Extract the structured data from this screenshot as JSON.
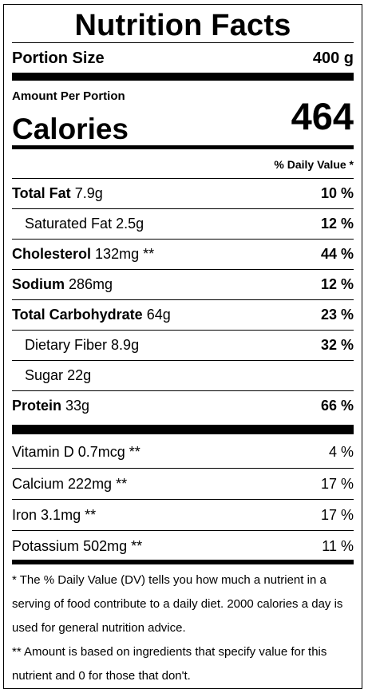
{
  "title": "Nutrition Facts",
  "portion": {
    "label": "Portion Size",
    "value": "400 g"
  },
  "amount_per_portion": "Amount Per Portion",
  "calories": {
    "label": "Calories",
    "value": "464"
  },
  "daily_value_header": "% Daily Value *",
  "nutrients": [
    {
      "name": "Total Fat",
      "amount": "7.9g",
      "percent": "10 %",
      "bold": true,
      "indent": false
    },
    {
      "name": "Saturated Fat",
      "amount": "2.5g",
      "percent": "12 %",
      "bold": false,
      "indent": true
    },
    {
      "name": "Cholesterol",
      "amount": "132mg **",
      "percent": "44 %",
      "bold": true,
      "indent": false
    },
    {
      "name": "Sodium",
      "amount": "286mg",
      "percent": "12 %",
      "bold": true,
      "indent": false
    },
    {
      "name": "Total Carbohydrate",
      "amount": "64g",
      "percent": "23 %",
      "bold": true,
      "indent": false
    },
    {
      "name": "Dietary Fiber",
      "amount": "8.9g",
      "percent": "32 %",
      "bold": false,
      "indent": true
    },
    {
      "name": "Sugar",
      "amount": "22g",
      "percent": "",
      "bold": false,
      "indent": true
    },
    {
      "name": "Protein",
      "amount": "33g",
      "percent": "66 %",
      "bold": true,
      "indent": false
    }
  ],
  "vitamins": [
    {
      "name": "Vitamin D",
      "amount": "0.7mcg **",
      "percent": "4 %"
    },
    {
      "name": "Calcium",
      "amount": "222mg **",
      "percent": "17 %"
    },
    {
      "name": "Iron",
      "amount": "3.1mg **",
      "percent": "17 %"
    },
    {
      "name": "Potassium",
      "amount": "502mg **",
      "percent": "11 %"
    }
  ],
  "footnotes": [
    "* The % Daily Value (DV) tells you how much a nutrient in a serving of food contribute to a daily diet. 2000 calories a day is used for general nutrition advice.",
    "** Amount is based on ingredients that specify value for this nutrient and 0 for those that don't."
  ]
}
